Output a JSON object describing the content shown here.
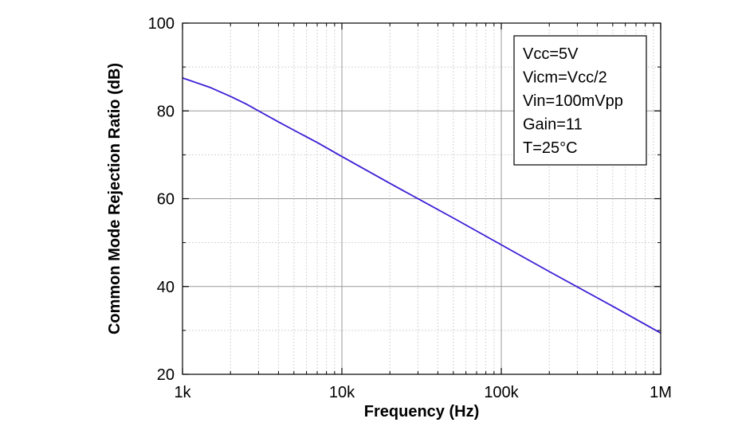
{
  "chart_data": {
    "type": "line",
    "xlabel": "Frequency (Hz)",
    "ylabel": "Common Mode Rejection Ratio (dB)",
    "xscale": "log",
    "xlim": [
      1000,
      1000000
    ],
    "ylim": [
      20,
      100
    ],
    "x_ticks": [
      1000,
      10000,
      100000,
      1000000
    ],
    "x_tick_labels": [
      "1k",
      "10k",
      "100k",
      "1M"
    ],
    "y_ticks": [
      20,
      40,
      60,
      80,
      100
    ],
    "y_tick_labels": [
      "20",
      "40",
      "60",
      "80",
      "100"
    ],
    "grid": true,
    "legend_position": "top-right",
    "annotations": [
      "Vcc=5V",
      "Vicm=Vcc/2",
      "Vin=100mVpp",
      "Gain=11",
      "T=25°C"
    ],
    "series": [
      {
        "color": "#3b1fd6",
        "x": [
          1000,
          1500,
          2000,
          2500,
          3000,
          4000,
          5000,
          7000,
          10000,
          20000,
          50000,
          100000,
          200000,
          500000,
          1000000
        ],
        "y": [
          87.5,
          85.3,
          83.3,
          81.6,
          80.0,
          77.5,
          75.6,
          72.8,
          69.6,
          63.5,
          55.6,
          49.5,
          43.4,
          35.5,
          29.4
        ]
      }
    ]
  }
}
